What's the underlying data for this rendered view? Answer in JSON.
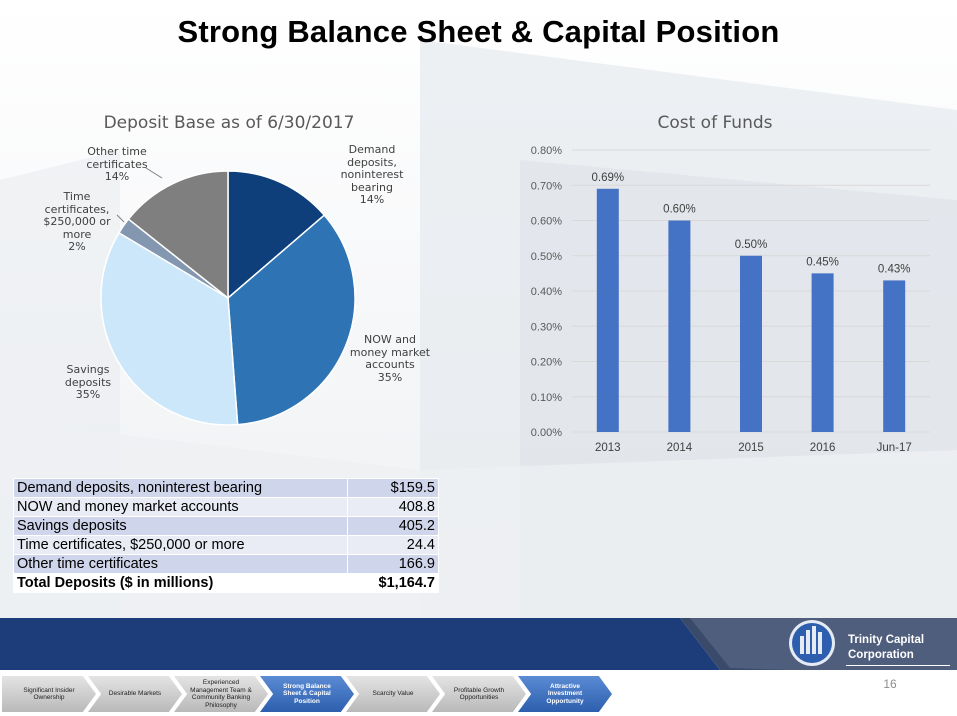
{
  "title": "Strong Balance Sheet & Capital Position",
  "colors": {
    "navy": "#1d3d7a",
    "bar": "#4472c4"
  },
  "chart_data": [
    {
      "type": "pie",
      "title": "Deposit Base as of 6/30/2017",
      "slices": [
        {
          "lines": [
            "Demand",
            "deposits,",
            "noninterest",
            "bearing"
          ],
          "pct": "14%",
          "value": 159.5,
          "color": "#0f3f7a"
        },
        {
          "lines": [
            "NOW and",
            "money market",
            "accounts"
          ],
          "pct": "35%",
          "value": 408.8,
          "color": "#2e74b5"
        },
        {
          "lines": [
            "Savings",
            "deposits"
          ],
          "pct": "35%",
          "value": 405.2,
          "color": "#cce6fa"
        },
        {
          "lines": [
            "Time",
            "certificates,",
            "$250,000 or",
            "more"
          ],
          "pct": "2%",
          "value": 24.4,
          "color": "#8497b0"
        },
        {
          "lines": [
            "Other time",
            "certificates"
          ],
          "pct": "14%",
          "value": 166.9,
          "color": "#7f7f7f"
        }
      ]
    },
    {
      "type": "bar",
      "title": "Cost of Funds",
      "categories": [
        "2013",
        "2014",
        "2015",
        "2016",
        "Jun-17"
      ],
      "values": [
        0.69,
        0.6,
        0.5,
        0.45,
        0.43
      ],
      "data_labels": [
        "0.69%",
        "0.60%",
        "0.50%",
        "0.45%",
        "0.43%"
      ],
      "ylim": [
        0,
        0.8
      ],
      "yticks": [
        "0.00%",
        "0.10%",
        "0.20%",
        "0.30%",
        "0.40%",
        "0.50%",
        "0.60%",
        "0.70%",
        "0.80%"
      ],
      "grid": true
    }
  ],
  "table": {
    "rows": [
      {
        "label": "Demand deposits, noninterest bearing",
        "value": "$159.5"
      },
      {
        "label": "NOW and money market accounts",
        "value": "408.8"
      },
      {
        "label": "Savings deposits",
        "value": "405.2"
      },
      {
        "label": "Time certificates, $250,000 or more",
        "value": "24.4"
      },
      {
        "label": "Other time certificates",
        "value": "166.9"
      }
    ],
    "total": {
      "label": "Total Deposits ($ in millions)",
      "value": "$1,164.7"
    }
  },
  "footer": {
    "company_line1": "Trinity Capital",
    "company_line2": "Corporation",
    "slide_number": "16",
    "nav": [
      {
        "label": "Significant Insider Ownership",
        "active": false
      },
      {
        "label": "Desirable Markets",
        "active": false
      },
      {
        "label": "Experienced Management Team & Community Banking Philosophy",
        "active": false
      },
      {
        "label": "Strong Balance Sheet & Capital Position",
        "active": true
      },
      {
        "label": "Scarcity Value",
        "active": false
      },
      {
        "label": "Profitable Growth Opportunities",
        "active": false
      },
      {
        "label": "Attractive Investment Opportunity",
        "active": true
      }
    ]
  }
}
